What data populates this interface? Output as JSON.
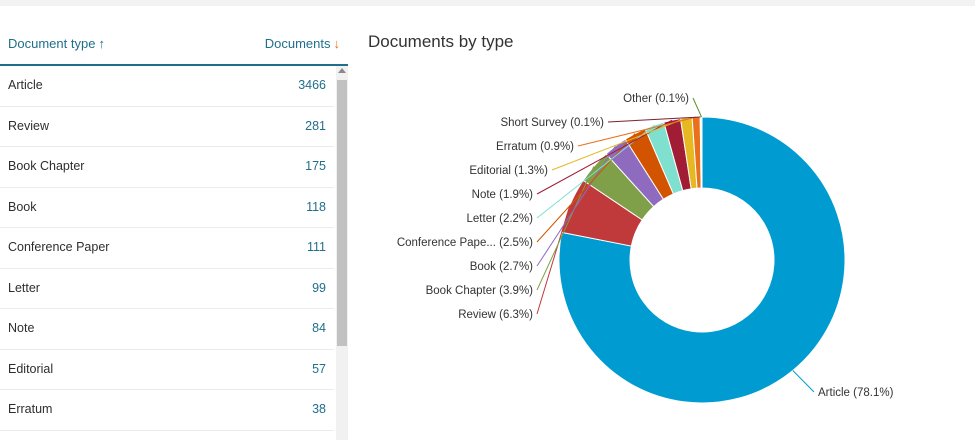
{
  "table": {
    "header": {
      "type_label": "Document type",
      "type_sort": "↑",
      "count_label": "Documents",
      "count_sort": "↓"
    },
    "rows": [
      {
        "type": "Article",
        "count": "3466"
      },
      {
        "type": "Review",
        "count": "281"
      },
      {
        "type": "Book Chapter",
        "count": "175"
      },
      {
        "type": "Book",
        "count": "118"
      },
      {
        "type": "Conference Paper",
        "count": "111"
      },
      {
        "type": "Letter",
        "count": "99"
      },
      {
        "type": "Note",
        "count": "84"
      },
      {
        "type": "Editorial",
        "count": "57"
      },
      {
        "type": "Erratum",
        "count": "38"
      }
    ]
  },
  "chart_data": {
    "type": "pie",
    "title": "Documents by type",
    "donut": true,
    "slices": [
      {
        "label": "Article (78.1%)",
        "value": 78.1,
        "color": "#009cd1"
      },
      {
        "label": "Review (6.3%)",
        "value": 6.3,
        "color": "#c0393b"
      },
      {
        "label": "Book Chapter (3.9%)",
        "value": 3.9,
        "color": "#7f9f48"
      },
      {
        "label": "Book (2.7%)",
        "value": 2.7,
        "color": "#8e6bbe"
      },
      {
        "label": "Conference Pape... (2.5%)",
        "value": 2.5,
        "color": "#d35400"
      },
      {
        "label": "Letter (2.2%)",
        "value": 2.2,
        "color": "#7fe0cf"
      },
      {
        "label": "Note (1.9%)",
        "value": 1.9,
        "color": "#a11d35"
      },
      {
        "label": "Editorial (1.3%)",
        "value": 1.3,
        "color": "#e6b822"
      },
      {
        "label": "Erratum (0.9%)",
        "value": 0.9,
        "color": "#e9711c"
      },
      {
        "label": "Short Survey (0.1%)",
        "value": 0.1,
        "color": "#7a2030"
      },
      {
        "label": "Other (0.1%)",
        "value": 0.1,
        "color": "#5c8f2e"
      }
    ]
  }
}
